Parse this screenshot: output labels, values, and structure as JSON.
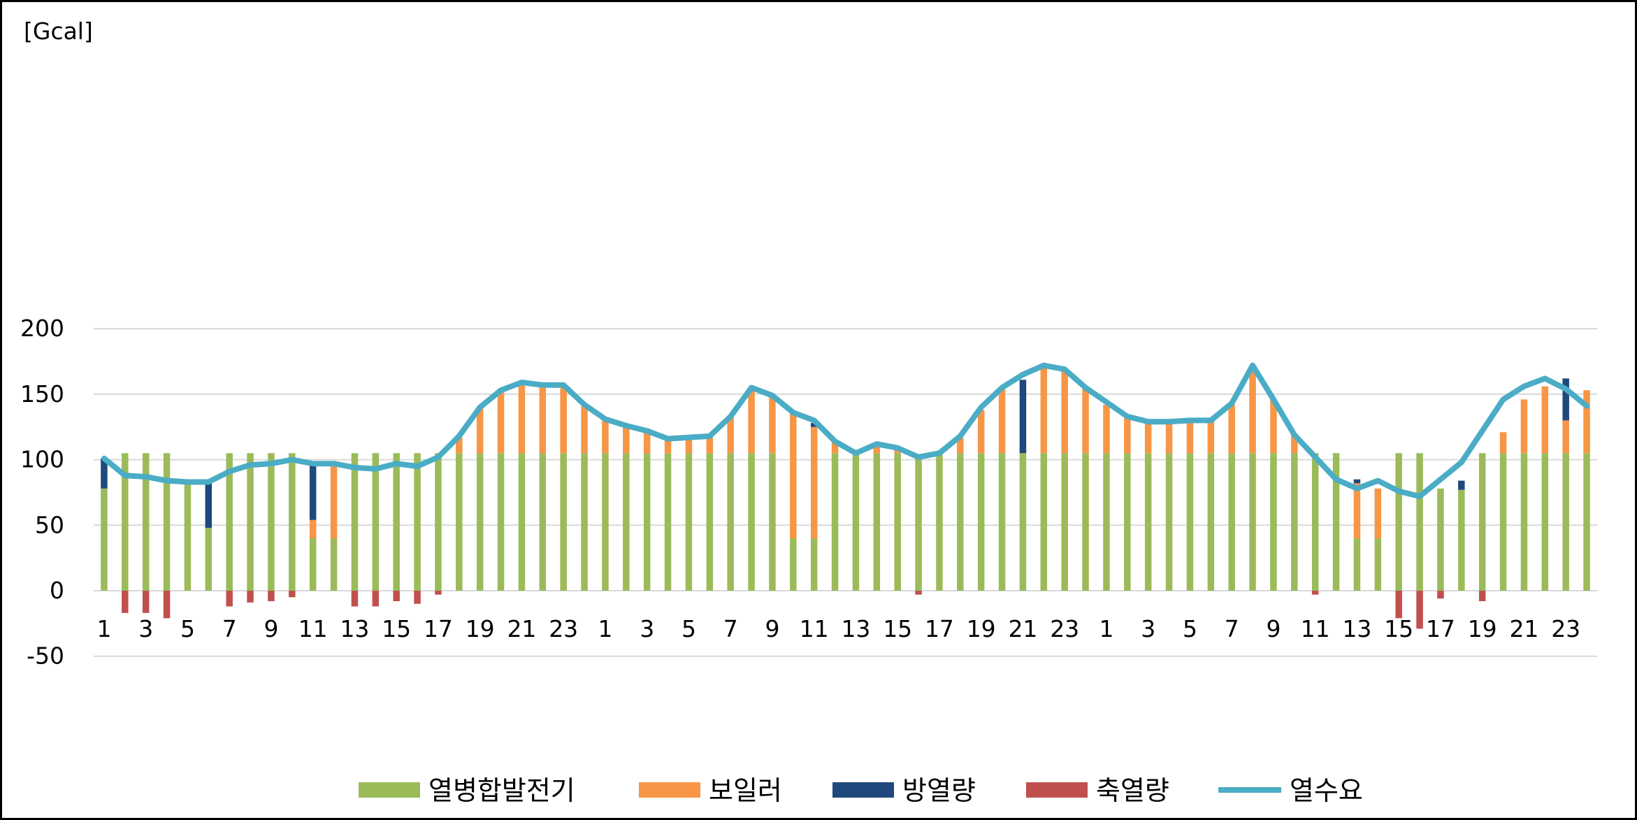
{
  "chart_data": {
    "type": "bar",
    "unit_label": "[Gcal]",
    "ylim": [
      -70,
      200
    ],
    "yticks": [
      200,
      150,
      100,
      50,
      0,
      -50
    ],
    "categories": [
      1,
      2,
      3,
      4,
      5,
      6,
      7,
      8,
      9,
      10,
      11,
      12,
      13,
      14,
      15,
      16,
      17,
      18,
      19,
      20,
      21,
      22,
      23,
      24,
      1,
      2,
      3,
      4,
      5,
      6,
      7,
      8,
      9,
      10,
      11,
      12,
      13,
      14,
      15,
      16,
      17,
      18,
      19,
      20,
      21,
      22,
      23,
      24,
      1,
      2,
      3,
      4,
      5,
      6,
      7,
      8,
      9,
      10,
      11,
      12,
      13,
      14,
      15,
      16,
      17,
      18,
      19,
      20,
      21,
      22,
      23,
      24
    ],
    "x_tick_labels": [
      "1",
      "3",
      "5",
      "7",
      "9",
      "11",
      "13",
      "15",
      "17",
      "19",
      "21",
      "23",
      "1",
      "3",
      "5",
      "7",
      "9",
      "11",
      "13",
      "15",
      "17",
      "19",
      "21",
      "23",
      "1",
      "3",
      "5",
      "7",
      "9",
      "11",
      "13",
      "15",
      "17",
      "19",
      "21",
      "23"
    ],
    "grid": true,
    "legend_position": "bottom",
    "series": [
      {
        "name": "열병합발전기",
        "kind": "bar",
        "color": "#9bbb59",
        "values": [
          78,
          105,
          105,
          105,
          83,
          48,
          105,
          105,
          105,
          105,
          40,
          40,
          105,
          105,
          105,
          105,
          105,
          105,
          105,
          105,
          105,
          105,
          105,
          105,
          105,
          105,
          105,
          105,
          105,
          105,
          105,
          105,
          105,
          40,
          40,
          105,
          105,
          105,
          105,
          102,
          105,
          105,
          105,
          105,
          105,
          105,
          105,
          105,
          105,
          105,
          105,
          105,
          105,
          105,
          105,
          105,
          105,
          105,
          105,
          105,
          40,
          40,
          105,
          105,
          78,
          77,
          105,
          105,
          105,
          105,
          105,
          105
        ]
      },
      {
        "name": "보일러",
        "kind": "bar",
        "color": "#f79646",
        "values": [
          0,
          0,
          0,
          0,
          0,
          0,
          0,
          0,
          0,
          0,
          14,
          55,
          0,
          0,
          0,
          0,
          0,
          12,
          34,
          48,
          53,
          51,
          51,
          36,
          25,
          20,
          16,
          10,
          12,
          13,
          28,
          50,
          43,
          96,
          85,
          9,
          0,
          7,
          4,
          0,
          0,
          12,
          33,
          49,
          0,
          67,
          63,
          50,
          37,
          28,
          24,
          24,
          25,
          25,
          37,
          63,
          41,
          14,
          0,
          0,
          42,
          38,
          0,
          0,
          0,
          0,
          0,
          16,
          41,
          51,
          25,
          48
        ]
      },
      {
        "name": "방열량",
        "kind": "bar",
        "color": "#1f497d",
        "values": [
          23,
          0,
          0,
          0,
          0,
          35,
          0,
          0,
          0,
          0,
          43,
          0,
          0,
          0,
          0,
          0,
          0,
          0,
          0,
          0,
          0,
          0,
          0,
          0,
          0,
          0,
          0,
          0,
          0,
          0,
          0,
          0,
          0,
          0,
          3,
          0,
          0,
          0,
          0,
          0,
          0,
          0,
          0,
          0,
          56,
          0,
          0,
          0,
          0,
          0,
          0,
          0,
          0,
          0,
          0,
          0,
          0,
          0,
          0,
          0,
          3,
          0,
          0,
          0,
          0,
          7,
          0,
          0,
          0,
          0,
          32,
          0
        ]
      },
      {
        "name": "축열량",
        "kind": "bar",
        "color": "#c0504d",
        "values": [
          0,
          -17,
          -17,
          -21,
          0,
          0,
          -12,
          -9,
          -8,
          -5,
          0,
          0,
          -12,
          -12,
          -8,
          -10,
          -3,
          0,
          0,
          0,
          0,
          0,
          0,
          0,
          0,
          0,
          0,
          0,
          0,
          0,
          0,
          0,
          0,
          0,
          0,
          0,
          0,
          0,
          0,
          -3,
          0,
          0,
          0,
          0,
          0,
          0,
          0,
          0,
          0,
          0,
          0,
          0,
          0,
          0,
          0,
          0,
          0,
          0,
          -3,
          0,
          0,
          0,
          -21,
          -29,
          -6,
          0,
          -8,
          0,
          0,
          0,
          0,
          0
        ]
      },
      {
        "name": "열수요",
        "kind": "line",
        "color": "#4bacc6",
        "values": [
          101,
          88,
          87,
          84,
          83,
          83,
          91,
          96,
          97,
          100,
          97,
          97,
          94,
          93,
          97,
          95,
          102,
          118,
          140,
          153,
          159,
          157,
          157,
          142,
          131,
          126,
          122,
          116,
          117,
          118,
          133,
          155,
          149,
          136,
          130,
          114,
          105,
          112,
          109,
          102,
          105,
          118,
          140,
          155,
          165,
          172,
          169,
          155,
          144,
          133,
          129,
          129,
          130,
          130,
          143,
          172,
          146,
          119,
          102,
          85,
          78,
          84,
          76,
          72,
          85,
          98,
          122,
          146,
          156,
          162,
          154,
          141
        ]
      }
    ]
  }
}
